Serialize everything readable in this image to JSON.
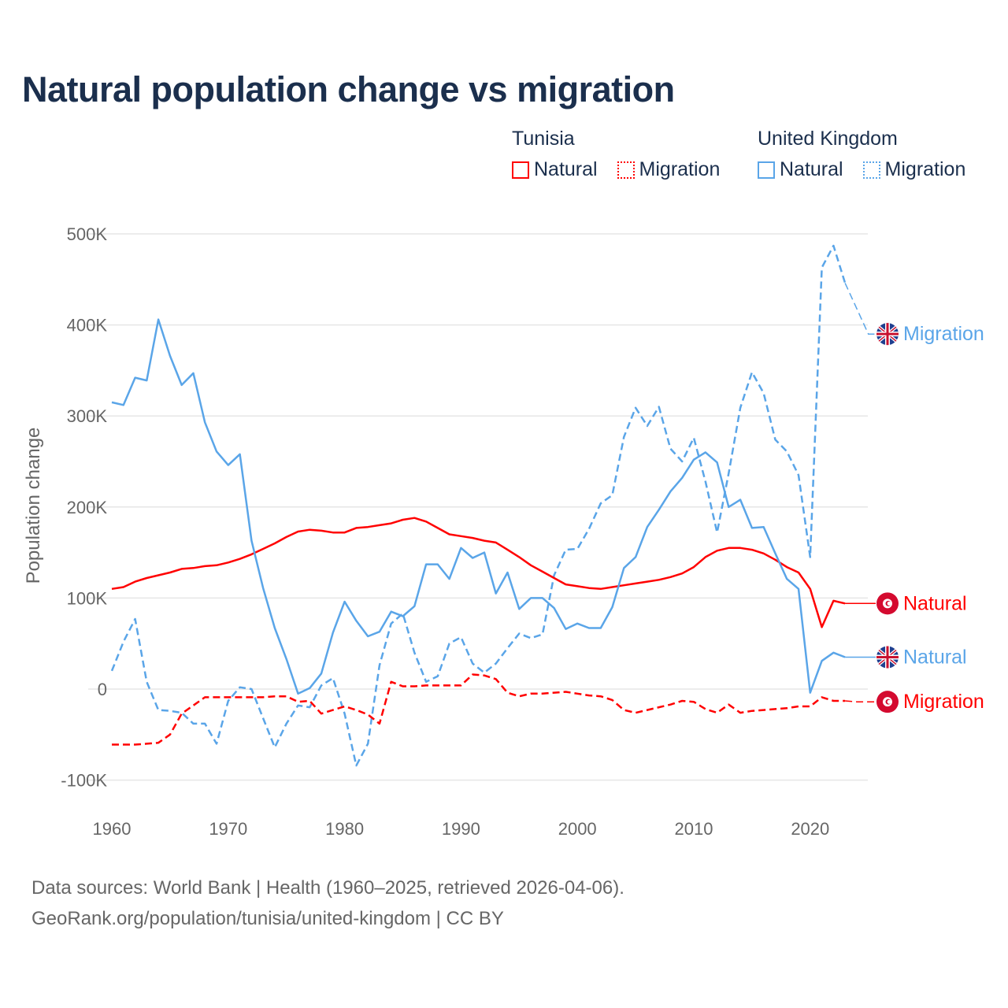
{
  "chart_data": {
    "type": "line",
    "title": "Natural population change vs migration",
    "ylabel": "Population change",
    "xlabel": "",
    "xlim": [
      1960,
      2025
    ],
    "ylim": [
      -100000,
      500000
    ],
    "x_ticks": [
      1960,
      1970,
      1980,
      1990,
      2000,
      2010,
      2020
    ],
    "x_tick_labels": [
      "1960",
      "1970",
      "1980",
      "1990",
      "2000",
      "2010",
      "2020"
    ],
    "y_ticks": [
      -100000,
      0,
      100000,
      200000,
      300000,
      400000,
      500000
    ],
    "y_tick_labels": [
      "-100K",
      "0",
      "100K",
      "200K",
      "300K",
      "400K",
      "500K"
    ],
    "grid": true,
    "legend": {
      "placement": "top-right",
      "groups": [
        {
          "name": "Tunisia",
          "items": [
            {
              "label": "Natural",
              "style": "solid"
            },
            {
              "label": "Migration",
              "style": "dotted"
            }
          ]
        },
        {
          "name": "United Kingdom",
          "items": [
            {
              "label": "Natural",
              "style": "solid"
            },
            {
              "label": "Migration",
              "style": "dotted"
            }
          ]
        }
      ]
    },
    "colors": {
      "tunisia": "#ff0000",
      "uk": "#5aa5e8",
      "tunisia_flag": "#d40a2f"
    },
    "x_start": 1960,
    "series": [
      {
        "name": "United Kingdom Migration",
        "country": "uk",
        "dash": true,
        "end_label": "Migration",
        "values": [
          20,
          52,
          77,
          8,
          -23,
          -24,
          -26,
          -38,
          -38,
          -60,
          -13,
          2,
          0,
          -32,
          -64,
          -38,
          -18,
          -20,
          4,
          12,
          -27,
          -84,
          -60,
          26,
          72,
          83,
          40,
          8,
          14,
          50,
          57,
          28,
          18,
          28,
          45,
          61,
          56,
          60,
          125,
          153,
          154,
          176,
          204,
          213,
          277,
          309,
          289,
          310,
          264,
          250,
          276,
          228,
          172,
          237,
          309,
          348,
          325,
          274,
          261,
          235,
          145,
          463,
          487,
          446,
          418,
          390
        ]
      },
      {
        "name": "Tunisia Natural",
        "country": "tunisia",
        "dash": false,
        "end_label": "Natural",
        "values": [
          110,
          112,
          118,
          122,
          125,
          128,
          132,
          133,
          135,
          136,
          139,
          143,
          148,
          154,
          160,
          167,
          173,
          175,
          174,
          172,
          172,
          177,
          178,
          180,
          182,
          186,
          188,
          184,
          177,
          170,
          168,
          166,
          163,
          161,
          153,
          145,
          136,
          129,
          122,
          115,
          113,
          111,
          110,
          112,
          114,
          116,
          118,
          120,
          123,
          127,
          134,
          145,
          152,
          155,
          155,
          153,
          149,
          142,
          134,
          128,
          110,
          68,
          97,
          94,
          94,
          94
        ]
      },
      {
        "name": "United Kingdom Natural",
        "country": "uk",
        "dash": false,
        "end_label": "Natural",
        "values": [
          315,
          312,
          342,
          339,
          406,
          366,
          334,
          347,
          293,
          261,
          246,
          258,
          163,
          111,
          67,
          33,
          -5,
          1,
          17,
          62,
          96,
          75,
          58,
          63,
          85,
          80,
          91,
          137,
          137,
          121,
          155,
          144,
          150,
          105,
          128,
          88,
          100,
          100,
          89,
          66,
          72,
          67,
          67,
          90,
          133,
          145,
          178,
          197,
          217,
          232,
          252,
          260,
          249,
          200,
          208,
          177,
          178,
          149,
          121,
          110,
          -4,
          31,
          40,
          35,
          35,
          35
        ]
      },
      {
        "name": "Tunisia Migration",
        "country": "tunisia",
        "dash": true,
        "end_label": "Migration",
        "values": [
          -61,
          -61,
          -61,
          -60,
          -59,
          -50,
          -27,
          -18,
          -9,
          -9,
          -9,
          -9,
          -9,
          -9,
          -8,
          -8,
          -14,
          -13,
          -27,
          -23,
          -19,
          -23,
          -28,
          -38,
          8,
          3,
          3,
          4,
          4,
          4,
          4,
          16,
          15,
          11,
          -4,
          -8,
          -5,
          -5,
          -4,
          -3,
          -5,
          -7,
          -8,
          -12,
          -23,
          -26,
          -23,
          -20,
          -17,
          -13,
          -14,
          -22,
          -26,
          -17,
          -26,
          -24,
          -23,
          -22,
          -21,
          -19,
          -19,
          -9,
          -13,
          -13,
          -14,
          -14
        ]
      }
    ],
    "value_unit_multiplier": 1000
  },
  "footer": {
    "line1": "Data sources: World Bank | Health (1960–2025, retrieved 2026-04-06).",
    "line2": "GeoRank.org/population/tunisia/united-kingdom | CC BY"
  }
}
